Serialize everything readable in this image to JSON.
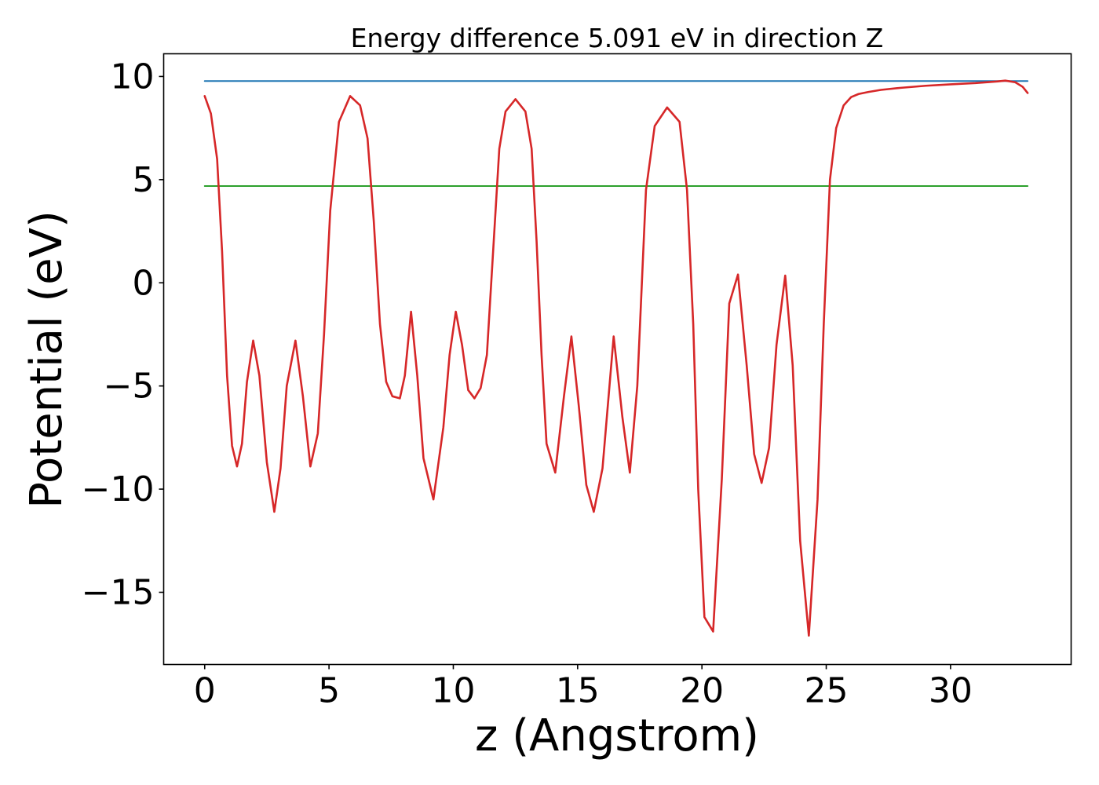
{
  "chart_data": {
    "type": "line",
    "title": "Energy difference 5.091 eV in direction Z",
    "xlabel": "z (Angstrom)",
    "ylabel": "Potential (eV)",
    "xlim": [
      -1.65,
      34.85
    ],
    "ylim": [
      -18.5,
      11.1
    ],
    "xticks": [
      0,
      5,
      10,
      15,
      20,
      25,
      30
    ],
    "xtick_labels": [
      "0",
      "5",
      "10",
      "15",
      "20",
      "25",
      "30"
    ],
    "yticks": [
      -15,
      -10,
      -5,
      0,
      5,
      10
    ],
    "ytick_labels": [
      "−15",
      "−10",
      "−5",
      "0",
      "5",
      "10"
    ],
    "grid": false,
    "legend": "none",
    "series": [
      {
        "color": "#d62728",
        "x": [
          0,
          0.25,
          0.5,
          0.7,
          0.9,
          1.1,
          1.3,
          1.5,
          1.7,
          1.95,
          2.2,
          2.5,
          2.8,
          3.05,
          3.3,
          3.65,
          3.95,
          4.25,
          4.55,
          4.8,
          5.05,
          5.4,
          5.85,
          6.25,
          6.55,
          6.8,
          7.05,
          7.3,
          7.55,
          7.85,
          8.05,
          8.3,
          8.55,
          8.8,
          9.2,
          9.6,
          9.85,
          10.1,
          10.35,
          10.6,
          10.85,
          11.1,
          11.35,
          11.6,
          11.85,
          12.1,
          12.5,
          12.9,
          13.15,
          13.35,
          13.55,
          13.75,
          14.1,
          14.45,
          14.75,
          15.05,
          15.35,
          15.65,
          16.0,
          16.45,
          16.8,
          17.1,
          17.4,
          17.75,
          18.1,
          18.6,
          19.1,
          19.4,
          19.65,
          19.85,
          20.1,
          20.45,
          20.8,
          21.1,
          21.45,
          21.8,
          22.1,
          22.4,
          22.7,
          23.0,
          23.35,
          23.65,
          23.95,
          24.3,
          24.65,
          24.9,
          25.15,
          25.4,
          25.7,
          26.0,
          26.3,
          26.7,
          27.2,
          28.0,
          29.0,
          30.0,
          31.0,
          31.8,
          32.2,
          32.6,
          32.9,
          33.1
        ],
        "y": [
          9.05,
          8.2,
          6.0,
          1.5,
          -4.5,
          -7.9,
          -8.9,
          -7.8,
          -4.8,
          -2.8,
          -4.5,
          -8.7,
          -11.1,
          -9.0,
          -5.0,
          -2.8,
          -5.5,
          -8.9,
          -7.3,
          -2.5,
          3.5,
          7.8,
          9.05,
          8.6,
          7.0,
          3.0,
          -2.0,
          -4.8,
          -5.5,
          -5.6,
          -4.5,
          -1.4,
          -4.5,
          -8.5,
          -10.5,
          -7.0,
          -3.5,
          -1.4,
          -3.0,
          -5.2,
          -5.6,
          -5.1,
          -3.5,
          1.5,
          6.5,
          8.3,
          8.9,
          8.3,
          6.5,
          2.0,
          -3.5,
          -7.8,
          -9.2,
          -5.5,
          -2.6,
          -6.0,
          -9.8,
          -11.1,
          -9.0,
          -2.6,
          -6.5,
          -9.2,
          -5.0,
          4.5,
          7.6,
          8.5,
          7.8,
          4.5,
          -2.0,
          -10.0,
          -16.2,
          -16.9,
          -9.5,
          -1.0,
          0.4,
          -4.0,
          -8.3,
          -9.7,
          -8.0,
          -3.0,
          0.35,
          -4.0,
          -12.5,
          -17.1,
          -10.5,
          -2.0,
          5.0,
          7.5,
          8.6,
          9.0,
          9.15,
          9.25,
          9.35,
          9.45,
          9.55,
          9.62,
          9.68,
          9.75,
          9.8,
          9.72,
          9.5,
          9.2
        ]
      },
      {
        "color": "#1f77b4",
        "x": [
          0,
          33.1
        ],
        "y": [
          9.78,
          9.78
        ]
      },
      {
        "color": "#2ca02c",
        "x": [
          0,
          33.1
        ],
        "y": [
          4.69,
          4.69
        ]
      }
    ]
  }
}
